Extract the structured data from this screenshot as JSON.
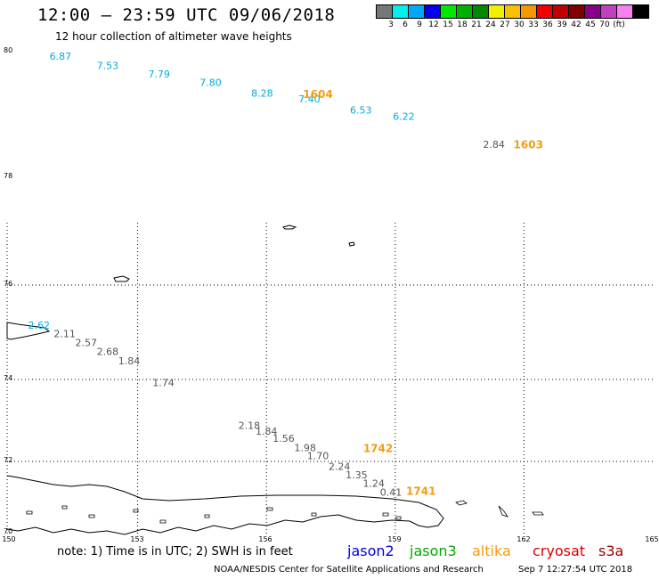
{
  "header": {
    "title": "12:00 – 23:59 UTC 09/06/2018",
    "subtitle": "12 hour collection of altimeter wave heights"
  },
  "legend": {
    "colors": [
      "#777777",
      "#00f0f0",
      "#00a8f8",
      "#0000f0",
      "#00e800",
      "#00b000",
      "#008800",
      "#f0f000",
      "#f8c000",
      "#f89800",
      "#f00000",
      "#c00000",
      "#800000",
      "#880088",
      "#c040c0",
      "#f880f0",
      "#000000"
    ],
    "labels": [
      "3",
      "6",
      "9",
      "12",
      "15",
      "18",
      "21",
      "24",
      "27",
      "30",
      "33",
      "36",
      "39",
      "42",
      "45",
      "70",
      "(ft)"
    ]
  },
  "axes": {
    "lat_labels": [
      "80",
      "78",
      "76",
      "74",
      "72",
      "70"
    ],
    "lon_labels": [
      "150",
      "153",
      "156",
      "159",
      "162",
      "165"
    ],
    "lat_range": [
      70,
      80
    ],
    "lon_range": [
      150,
      165
    ]
  },
  "chart_data": {
    "type": "scatter",
    "series": [
      {
        "color": "#00aadd",
        "points": [
          {
            "lon": 151.2,
            "lat": 79.9,
            "v": "6.87"
          },
          {
            "lon": 152.3,
            "lat": 79.75,
            "v": "7.53"
          },
          {
            "lon": 153.5,
            "lat": 79.62,
            "v": "7.79"
          },
          {
            "lon": 154.7,
            "lat": 79.48,
            "v": "7.80"
          },
          {
            "lon": 155.9,
            "lat": 79.31,
            "v": "8.28"
          },
          {
            "lon": 157.0,
            "lat": 79.22,
            "v": "7.40"
          },
          {
            "lon": 158.2,
            "lat": 79.04,
            "v": "6.53"
          },
          {
            "lon": 159.2,
            "lat": 78.94,
            "v": "6.22"
          },
          {
            "lon": 150.7,
            "lat": 75.13,
            "v": "2.62"
          }
        ]
      },
      {
        "color": "#555555",
        "points": [
          {
            "lon": 161.3,
            "lat": 78.5,
            "v": "2.84"
          },
          {
            "lon": 151.3,
            "lat": 74.95,
            "v": "2.11"
          },
          {
            "lon": 151.8,
            "lat": 74.76,
            "v": "2.57"
          },
          {
            "lon": 152.3,
            "lat": 74.58,
            "v": "2.68"
          },
          {
            "lon": 152.8,
            "lat": 74.38,
            "v": "1.84"
          },
          {
            "lon": 153.6,
            "lat": 73.9,
            "v": "1.74"
          },
          {
            "lon": 155.6,
            "lat": 72.86,
            "v": "2.18"
          },
          {
            "lon": 156.0,
            "lat": 72.72,
            "v": "1.84"
          },
          {
            "lon": 156.4,
            "lat": 72.54,
            "v": "1.56"
          },
          {
            "lon": 156.9,
            "lat": 72.31,
            "v": "1.98"
          },
          {
            "lon": 157.2,
            "lat": 72.12,
            "v": "1.70"
          },
          {
            "lon": 157.7,
            "lat": 71.84,
            "v": "2.24"
          },
          {
            "lon": 158.1,
            "lat": 71.6,
            "v": "1.35"
          },
          {
            "lon": 158.5,
            "lat": 71.36,
            "v": "1.24"
          },
          {
            "lon": 158.9,
            "lat": 71.1,
            "v": "0.41"
          }
        ]
      }
    ],
    "time_labels": [
      {
        "lon": 157.2,
        "lat": 79.3,
        "t": "1604"
      },
      {
        "lon": 162.1,
        "lat": 78.5,
        "t": "1603"
      },
      {
        "lon": 158.6,
        "lat": 72.3,
        "t": "1742"
      },
      {
        "lon": 159.6,
        "lat": 71.14,
        "t": "1741"
      }
    ]
  },
  "footer": {
    "note": "note:  1) Time is in UTC;  2) SWH is in feet",
    "satellites": [
      {
        "name": "jason2",
        "color": "#0000dd"
      },
      {
        "name": "jason3",
        "color": "#00aa00"
      },
      {
        "name": "altika",
        "color": "#f39c12"
      },
      {
        "name": "cryosat",
        "color": "#dd0000"
      },
      {
        "name": "s3a",
        "color": "#990000"
      }
    ],
    "credit": "NOAA/NESDIS Center for Satellite Applications and Research",
    "timestamp": "Sep  7 12:27:54 UTC 2018"
  }
}
